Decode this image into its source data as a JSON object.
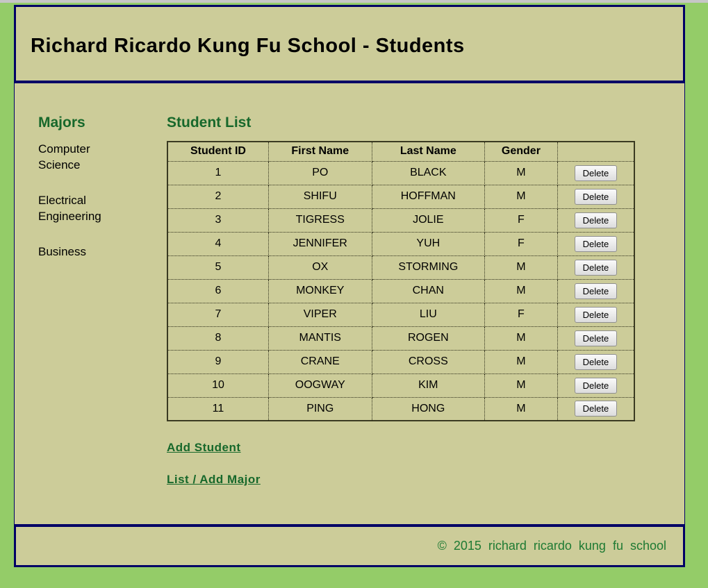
{
  "colors": {
    "page_background": "#94cc68",
    "panel_background": "#cccc99",
    "panel_border": "#000066",
    "heading_green": "#17682b",
    "footer_green": "#1e7a33"
  },
  "header": {
    "title": "Richard Ricardo Kung Fu School - Students"
  },
  "sidebar": {
    "heading": "Majors",
    "items": [
      {
        "label": "Computer Science"
      },
      {
        "label": "Electrical Engineering"
      },
      {
        "label": "Business"
      }
    ]
  },
  "main": {
    "heading": "Student List",
    "table": {
      "headers": [
        "Student ID",
        "First Name",
        "Last Name",
        "Gender",
        ""
      ],
      "delete_label": "Delete",
      "rows": [
        {
          "id": "1",
          "first": "PO",
          "last": "BLACK",
          "gender": "M"
        },
        {
          "id": "2",
          "first": "SHIFU",
          "last": "HOFFMAN",
          "gender": "M"
        },
        {
          "id": "3",
          "first": "TIGRESS",
          "last": "JOLIE",
          "gender": "F"
        },
        {
          "id": "4",
          "first": "JENNIFER",
          "last": "YUH",
          "gender": "F"
        },
        {
          "id": "5",
          "first": "OX",
          "last": "STORMING",
          "gender": "M"
        },
        {
          "id": "6",
          "first": "MONKEY",
          "last": "CHAN",
          "gender": "M"
        },
        {
          "id": "7",
          "first": "VIPER",
          "last": "LIU",
          "gender": "F"
        },
        {
          "id": "8",
          "first": "MANTIS",
          "last": "ROGEN",
          "gender": "M"
        },
        {
          "id": "9",
          "first": "CRANE",
          "last": "CROSS",
          "gender": "M"
        },
        {
          "id": "10",
          "first": "OOGWAY",
          "last": "KIM",
          "gender": "M"
        },
        {
          "id": "11",
          "first": "PING",
          "last": "HONG",
          "gender": "M"
        }
      ]
    },
    "links": [
      {
        "label": "Add Student"
      },
      {
        "label": "List / Add Major"
      }
    ]
  },
  "footer": {
    "text": "© 2015 richard ricardo kung fu school"
  }
}
